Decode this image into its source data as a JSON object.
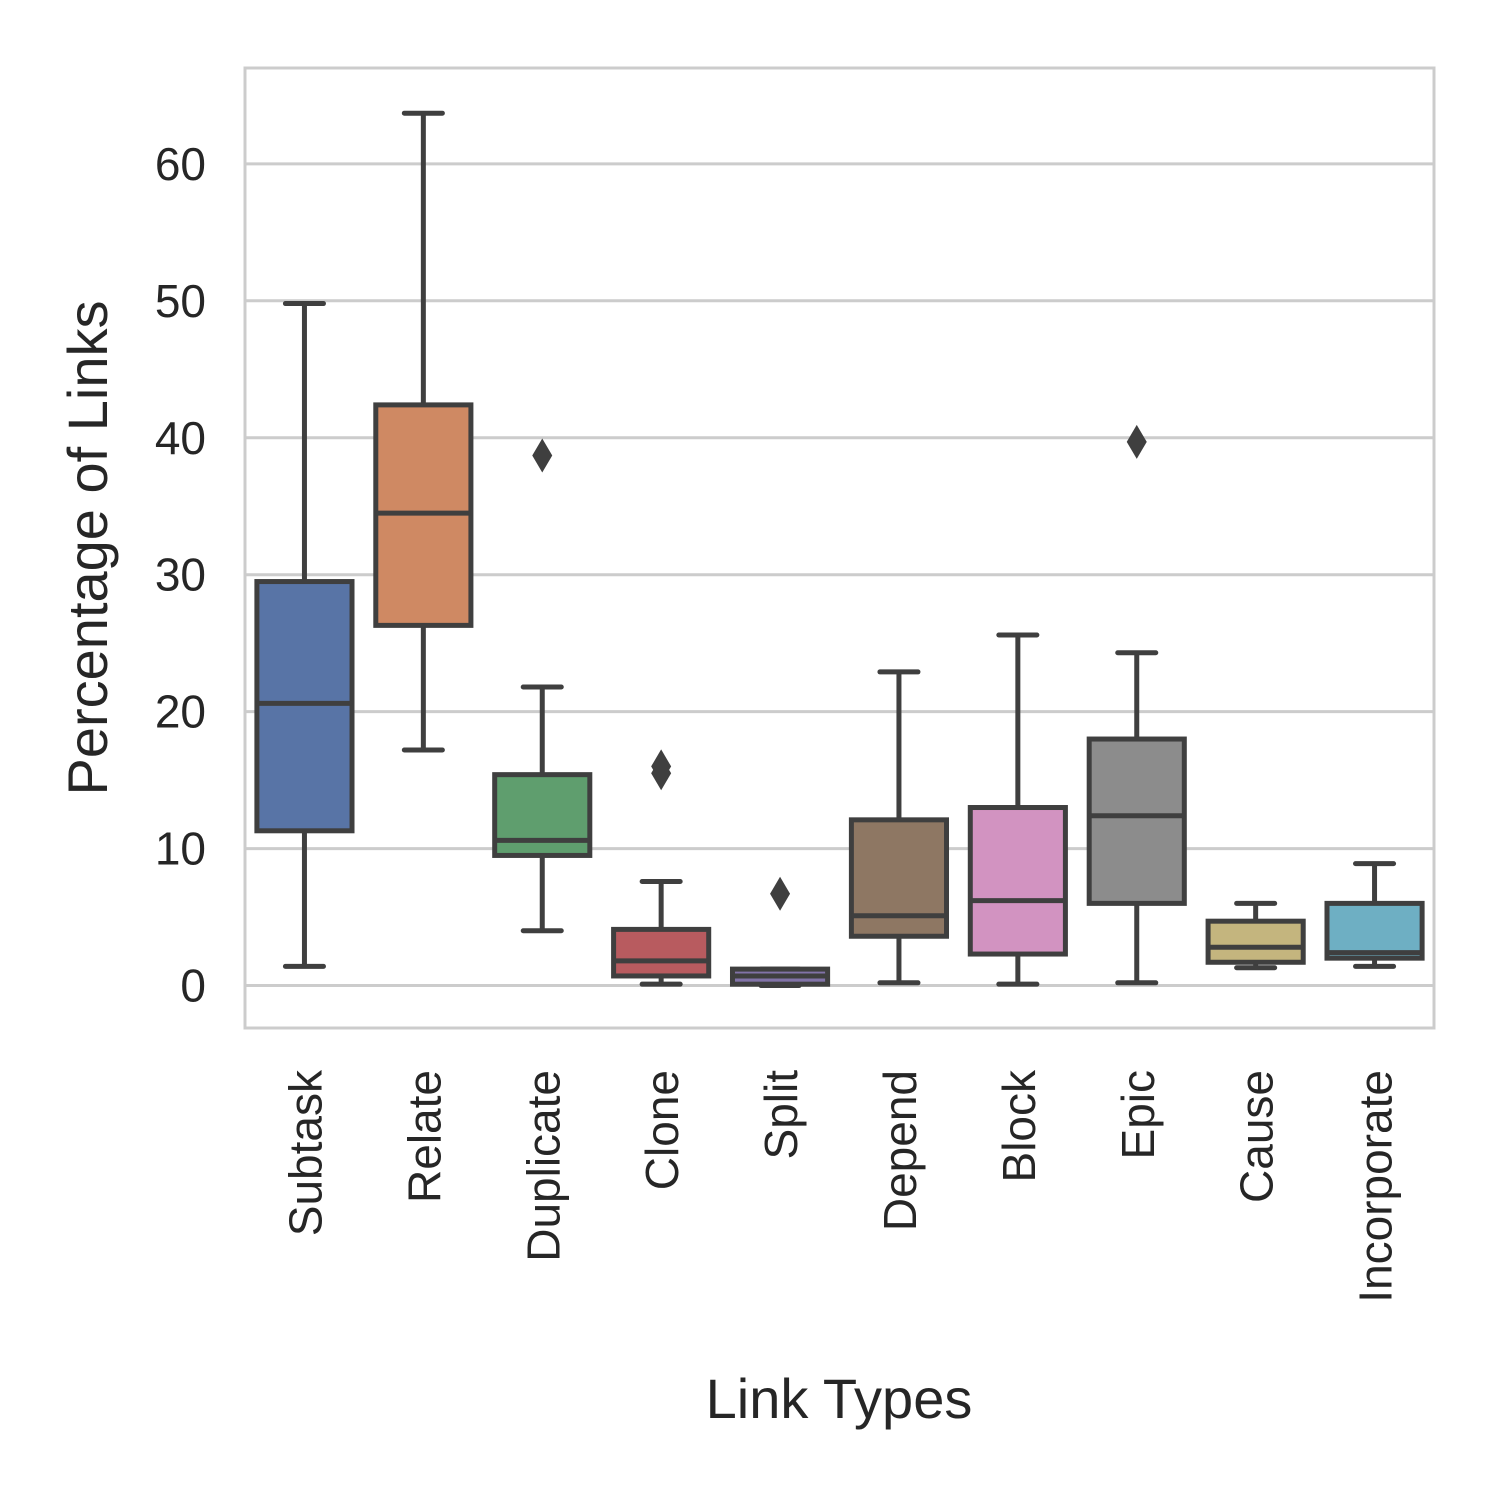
{
  "chart_data": {
    "type": "box",
    "xlabel": "Link Types",
    "ylabel": "Percentage of Links",
    "ylim": [
      -3.1,
      67.0
    ],
    "yticks": [
      0,
      10,
      20,
      30,
      40,
      50,
      60
    ],
    "grid": true,
    "categories": [
      "Subtask",
      "Relate",
      "Duplicate",
      "Clone",
      "Split",
      "Depend",
      "Block",
      "Epic",
      "Cause",
      "Incorporate"
    ],
    "boxes": [
      {
        "name": "Subtask",
        "whisker_low": 1.4,
        "q1": 11.3,
        "median": 20.6,
        "q3": 29.5,
        "whisker_high": 49.8,
        "outliers": [],
        "color": "#5874a6"
      },
      {
        "name": "Relate",
        "whisker_low": 17.2,
        "q1": 26.3,
        "median": 34.5,
        "q3": 42.4,
        "whisker_high": 63.7,
        "outliers": [],
        "color": "#cf8963"
      },
      {
        "name": "Duplicate",
        "whisker_low": 4.0,
        "q1": 9.5,
        "median": 10.6,
        "q3": 15.4,
        "whisker_high": 21.8,
        "outliers": [
          38.7
        ],
        "color": "#5f9e6e"
      },
      {
        "name": "Clone",
        "whisker_low": 0.1,
        "q1": 0.7,
        "median": 1.8,
        "q3": 4.1,
        "whisker_high": 7.6,
        "outliers": [
          15.5,
          16.0
        ],
        "color": "#b85b5f"
      },
      {
        "name": "Split",
        "whisker_low": 0.0,
        "q1": 0.1,
        "median": 0.7,
        "q3": 1.2,
        "whisker_high": 1.2,
        "outliers": [
          6.7
        ],
        "color": "#8273a8"
      },
      {
        "name": "Depend",
        "whisker_low": 0.2,
        "q1": 3.6,
        "median": 5.1,
        "q3": 12.1,
        "whisker_high": 22.9,
        "outliers": [],
        "color": "#8e7763"
      },
      {
        "name": "Block",
        "whisker_low": 0.1,
        "q1": 2.3,
        "median": 6.2,
        "q3": 13.0,
        "whisker_high": 25.6,
        "outliers": [],
        "color": "#d293c1"
      },
      {
        "name": "Epic",
        "whisker_low": 0.2,
        "q1": 6.0,
        "median": 12.4,
        "q3": 18.0,
        "whisker_high": 24.3,
        "outliers": [
          39.7
        ],
        "color": "#8c8c8c"
      },
      {
        "name": "Cause",
        "whisker_low": 1.3,
        "q1": 1.7,
        "median": 2.8,
        "q3": 4.7,
        "whisker_high": 6.0,
        "outliers": [],
        "color": "#c4b57e"
      },
      {
        "name": "Incorporate",
        "whisker_low": 1.4,
        "q1": 2.0,
        "median": 2.4,
        "q3": 6.0,
        "whisker_high": 8.9,
        "outliers": [],
        "color": "#6eafc3"
      }
    ]
  }
}
